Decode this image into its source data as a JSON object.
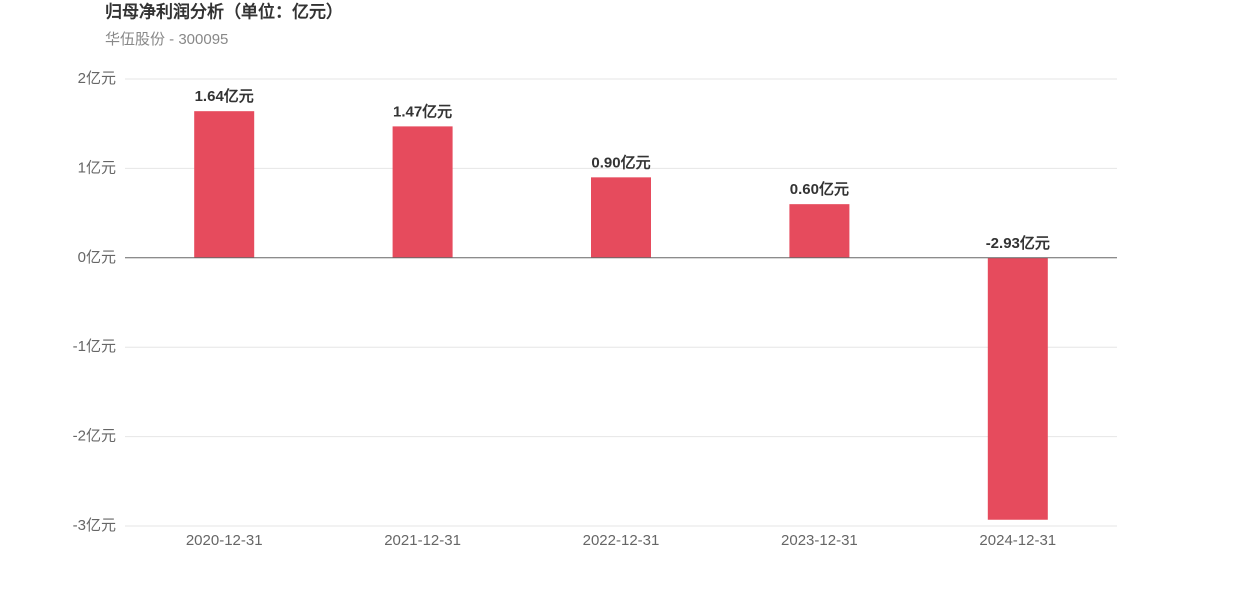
{
  "chart_data": {
    "type": "bar",
    "title": "归母净利润分析（单位：亿元）",
    "subtitle": "华伍股份 - 300095",
    "categories": [
      "2020-12-31",
      "2021-12-31",
      "2022-12-31",
      "2023-12-31",
      "2024-12-31"
    ],
    "values": [
      1.64,
      1.47,
      0.9,
      0.6,
      -2.93
    ],
    "value_labels": [
      "1.64亿元",
      "1.47亿元",
      "0.90亿元",
      "0.60亿元",
      "-2.93亿元"
    ],
    "color": "#e64b5d",
    "ylim": [
      -3,
      2
    ],
    "yticks": [
      {
        "value": -3,
        "label": "-3亿元"
      },
      {
        "value": -2,
        "label": "-2亿元"
      },
      {
        "value": -1,
        "label": "-1亿元"
      },
      {
        "value": 0,
        "label": "0亿元"
      },
      {
        "value": 1,
        "label": "1亿元"
      },
      {
        "value": 2,
        "label": "2亿元"
      }
    ],
    "grid": true
  }
}
